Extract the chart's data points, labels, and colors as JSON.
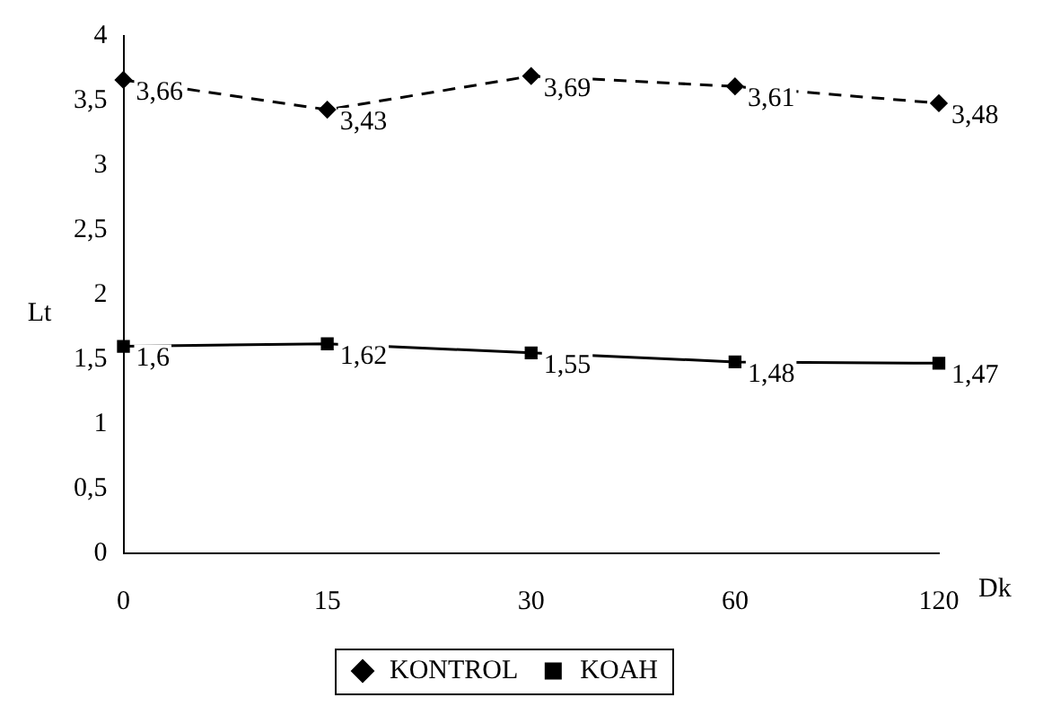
{
  "chart_data": {
    "type": "line",
    "xlabel": "Dk",
    "ylabel": "Lt",
    "categories": [
      "0",
      "15",
      "30",
      "60",
      "120"
    ],
    "series": [
      {
        "name": "KONTROL",
        "color": "#000000",
        "marker": "diamond",
        "line_style": "dashed",
        "values": [
          3.66,
          3.43,
          3.69,
          3.61,
          3.48
        ],
        "value_labels": [
          "3,66",
          "3,43",
          "3,69",
          "3,61",
          "3,48"
        ]
      },
      {
        "name": "KOAH",
        "color": "#000000",
        "marker": "square",
        "line_style": "solid",
        "values": [
          1.6,
          1.62,
          1.55,
          1.48,
          1.47
        ],
        "value_labels": [
          "1,6",
          "1,62",
          "1,55",
          "1,48",
          "1,47"
        ]
      }
    ],
    "ylim": [
      0,
      4
    ],
    "yticks": [
      0,
      {
        "value": 0.5,
        "label": "0,5"
      },
      1,
      {
        "value": 1.5,
        "label": "1,5"
      },
      2,
      {
        "value": 2.5,
        "label": "2,5"
      },
      3,
      {
        "value": 3.5,
        "label": "3,5"
      },
      4
    ],
    "grid": false,
    "legend": "bottom"
  }
}
